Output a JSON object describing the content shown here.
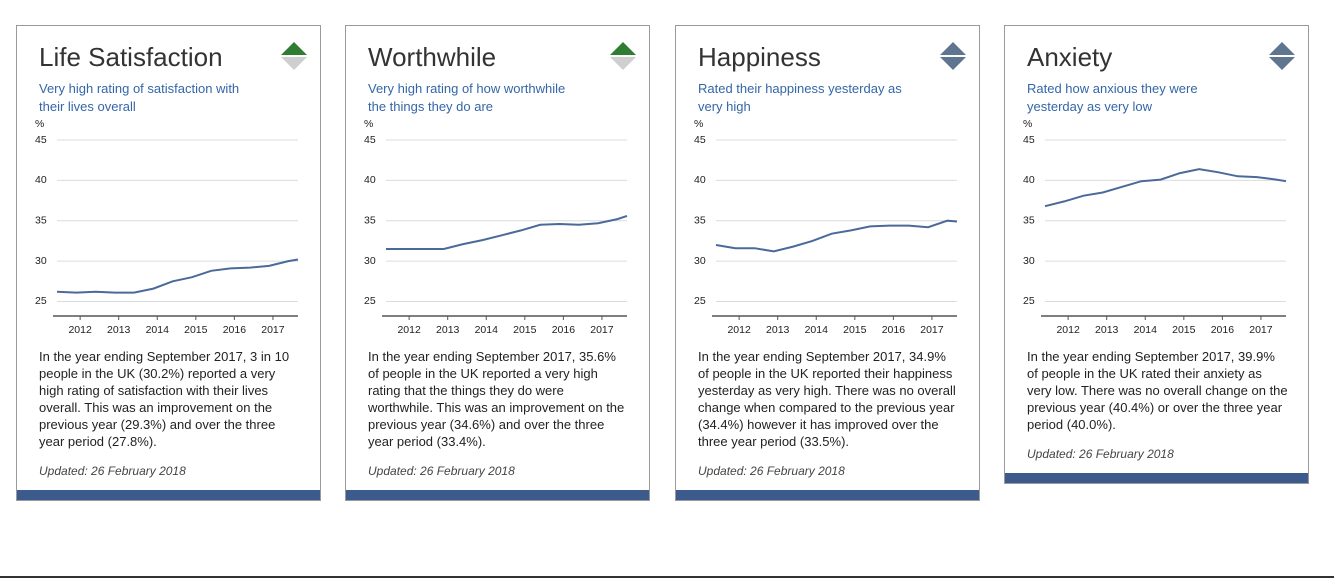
{
  "chart_data": [
    {
      "type": "line",
      "title": "Life Satisfaction",
      "subtitle": "Very high rating of satisfaction with their lives overall",
      "ylabel": "%",
      "x": [
        2011.4,
        2011.9,
        2012.4,
        2012.9,
        2013.4,
        2013.9,
        2014.4,
        2014.9,
        2015.4,
        2015.9,
        2016.4,
        2016.9,
        2017.4,
        2017.65
      ],
      "values": [
        26.2,
        26.1,
        26.2,
        26.1,
        26.1,
        26.6,
        27.5,
        28.0,
        28.8,
        29.1,
        29.2,
        29.4,
        30.0,
        30.2
      ],
      "color": "#4a6a9a",
      "xlim": [
        2011.4,
        2017.65
      ],
      "xticks": [
        2012,
        2013,
        2014,
        2015,
        2016,
        2017
      ],
      "ylim": [
        23.2,
        45
      ],
      "yticks": [
        25,
        30,
        35,
        40,
        45
      ],
      "grid": true,
      "description": "In the year ending September 2017, 3 in 10 people in the UK (30.2%) reported a very high rating of satisfaction with their lives overall. This was an improvement on the previous year (29.3%) and over the three year period (27.8%).",
      "updated": "Updated: 26 February 2018"
    },
    {
      "type": "line",
      "title": "Worthwhile",
      "subtitle": "Very high rating of how worthwhile the things they do are",
      "ylabel": "%",
      "x": [
        2011.4,
        2011.9,
        2012.4,
        2012.9,
        2013.4,
        2013.9,
        2014.4,
        2014.9,
        2015.4,
        2015.9,
        2016.4,
        2016.9,
        2017.4,
        2017.65
      ],
      "values": [
        31.5,
        31.5,
        31.5,
        31.5,
        32.1,
        32.6,
        33.2,
        33.8,
        34.5,
        34.6,
        34.5,
        34.7,
        35.2,
        35.6
      ],
      "color": "#4a6a9a",
      "xlim": [
        2011.4,
        2017.65
      ],
      "xticks": [
        2012,
        2013,
        2014,
        2015,
        2016,
        2017
      ],
      "ylim": [
        23.2,
        45
      ],
      "yticks": [
        25,
        30,
        35,
        40,
        45
      ],
      "grid": true,
      "description": "In the year ending September 2017, 35.6% of people in the UK reported a very high rating that the things they do were worthwhile. This was an improvement on the previous year (34.6%) and over the three year period (33.4%).",
      "updated": "Updated: 26 February 2018"
    },
    {
      "type": "line",
      "title": "Happiness",
      "subtitle": "Rated their happiness yesterday as very high",
      "ylabel": "%",
      "x": [
        2011.4,
        2011.9,
        2012.4,
        2012.9,
        2013.4,
        2013.9,
        2014.4,
        2014.9,
        2015.4,
        2015.9,
        2016.4,
        2016.9,
        2017.4,
        2017.65
      ],
      "values": [
        32.0,
        31.6,
        31.6,
        31.2,
        31.8,
        32.5,
        33.4,
        33.8,
        34.3,
        34.4,
        34.4,
        34.2,
        35.0,
        34.9
      ],
      "color": "#4a6a9a",
      "xlim": [
        2011.4,
        2017.65
      ],
      "xticks": [
        2012,
        2013,
        2014,
        2015,
        2016,
        2017
      ],
      "ylim": [
        23.2,
        45
      ],
      "yticks": [
        25,
        30,
        35,
        40,
        45
      ],
      "grid": true,
      "description": "In the year ending September 2017, 34.9% of people in the UK reported their happiness yesterday as very high. There was no overall change when compared to the previous year (34.4%) however it has improved over the three year period (33.5%).",
      "updated": "Updated: 26 February 2018"
    },
    {
      "type": "line",
      "title": "Anxiety",
      "subtitle": "Rated how anxious they were yesterday as very low",
      "ylabel": "%",
      "x": [
        2011.4,
        2011.9,
        2012.4,
        2012.9,
        2013.4,
        2013.9,
        2014.4,
        2014.9,
        2015.4,
        2015.9,
        2016.4,
        2016.9,
        2017.4,
        2017.65
      ],
      "values": [
        36.8,
        37.4,
        38.1,
        38.5,
        39.2,
        39.9,
        40.1,
        40.9,
        41.4,
        41.0,
        40.5,
        40.4,
        40.1,
        39.9
      ],
      "color": "#4a6a9a",
      "xlim": [
        2011.4,
        2017.65
      ],
      "xticks": [
        2012,
        2013,
        2014,
        2015,
        2016,
        2017
      ],
      "ylim": [
        23.2,
        45
      ],
      "yticks": [
        25,
        30,
        35,
        40,
        45
      ],
      "grid": true,
      "description": "In the year ending September 2017, 39.9% of people in the UK rated their anxiety as very low. There was no overall change on the previous year (40.4%) or over the three year period (40.0%).",
      "updated": "Updated: 26 February 2018"
    }
  ]
}
